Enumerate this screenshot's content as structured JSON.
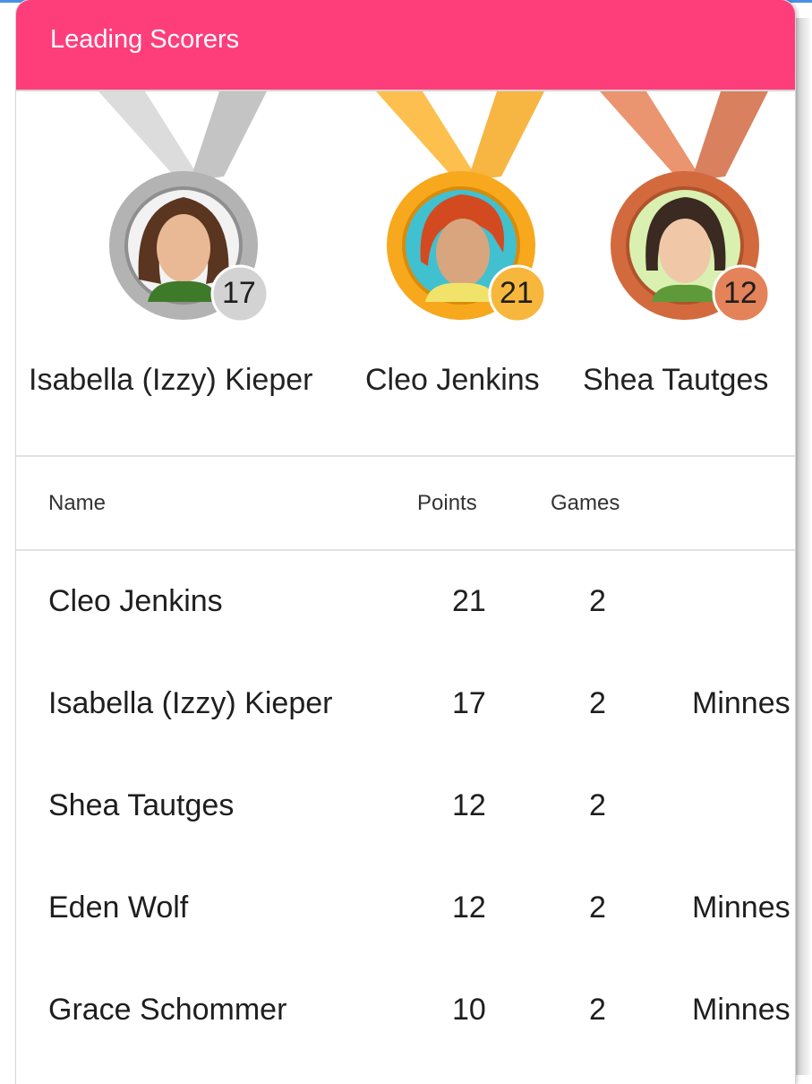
{
  "header": {
    "title": "Leading Scorers"
  },
  "podium": [
    {
      "name": "Isabella (Izzy) Kieper",
      "points": "17",
      "medal": "silver",
      "colors": {
        "ribbon_left": "#dcdcdc",
        "ribbon_right": "#c4c4c4",
        "ring": "#b3b3b3",
        "ring_dark": "#8f8f8f",
        "badge": "#d3d3d3",
        "avatar_bg": "#f2f2f2",
        "hair": "#5a3520",
        "shirt": "#3f7a2a",
        "skin": "#e8b994"
      }
    },
    {
      "name": "Cleo Jenkins",
      "points": "21",
      "medal": "gold",
      "colors": {
        "ribbon_left": "#fdc04e",
        "ribbon_right": "#f7b542",
        "ring": "#f7a81d",
        "ring_dark": "#d98b0a",
        "badge": "#f7b73d",
        "avatar_bg": "#41c0d0",
        "hair": "#d34a20",
        "shirt": "#f1e36a",
        "skin": "#d9a57e"
      }
    },
    {
      "name": "Shea Tautges",
      "points": "12",
      "medal": "bronze",
      "colors": {
        "ribbon_left": "#ea9470",
        "ribbon_right": "#d9805f",
        "ring": "#d26a3e",
        "ring_dark": "#b0532c",
        "badge": "#e4825a",
        "avatar_bg": "#d9f0b0",
        "hair": "#3a2a22",
        "shirt": "#5e9a3a",
        "skin": "#f0c8a8"
      }
    }
  ],
  "table": {
    "columns": [
      "Name",
      "Points",
      "Games"
    ],
    "rows": [
      {
        "name": "Cleo Jenkins",
        "points": "21",
        "games": "2",
        "team": ""
      },
      {
        "name": "Isabella (Izzy) Kieper",
        "points": "17",
        "games": "2",
        "team": "Minnes"
      },
      {
        "name": "Shea Tautges",
        "points": "12",
        "games": "2",
        "team": ""
      },
      {
        "name": "Eden Wolf",
        "points": "12",
        "games": "2",
        "team": "Minnes"
      },
      {
        "name": "Grace Schommer",
        "points": "10",
        "games": "2",
        "team": "Minnes"
      }
    ]
  },
  "colors": {
    "header": "#fe3e7b",
    "accent_line": "#4a90e2"
  }
}
